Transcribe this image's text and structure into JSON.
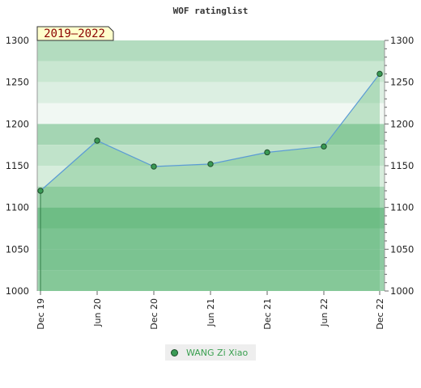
{
  "chart_data": {
    "type": "area",
    "title": "WOF ratinglist",
    "period_label": "2019–2022",
    "x": [
      "Dec 19",
      "Jun 20",
      "Dec 20",
      "Jun 21",
      "Dec 21",
      "Jun 22",
      "Dec 22"
    ],
    "values": [
      1120,
      1180,
      1149,
      1152,
      1166,
      1173,
      1260
    ],
    "ylim": [
      1000,
      1300
    ],
    "yticks": [
      1000,
      1050,
      1100,
      1150,
      1200,
      1250,
      1300
    ],
    "series": [
      {
        "name": "WANG Zi Xiao",
        "values": [
          1120,
          1180,
          1149,
          1152,
          1166,
          1173,
          1260
        ]
      }
    ],
    "colors": {
      "line": "#5b9bd5",
      "area": "#5cb872",
      "marker": "#3a9a55"
    },
    "legend_position": "bottom",
    "axes": "left-and-right"
  }
}
